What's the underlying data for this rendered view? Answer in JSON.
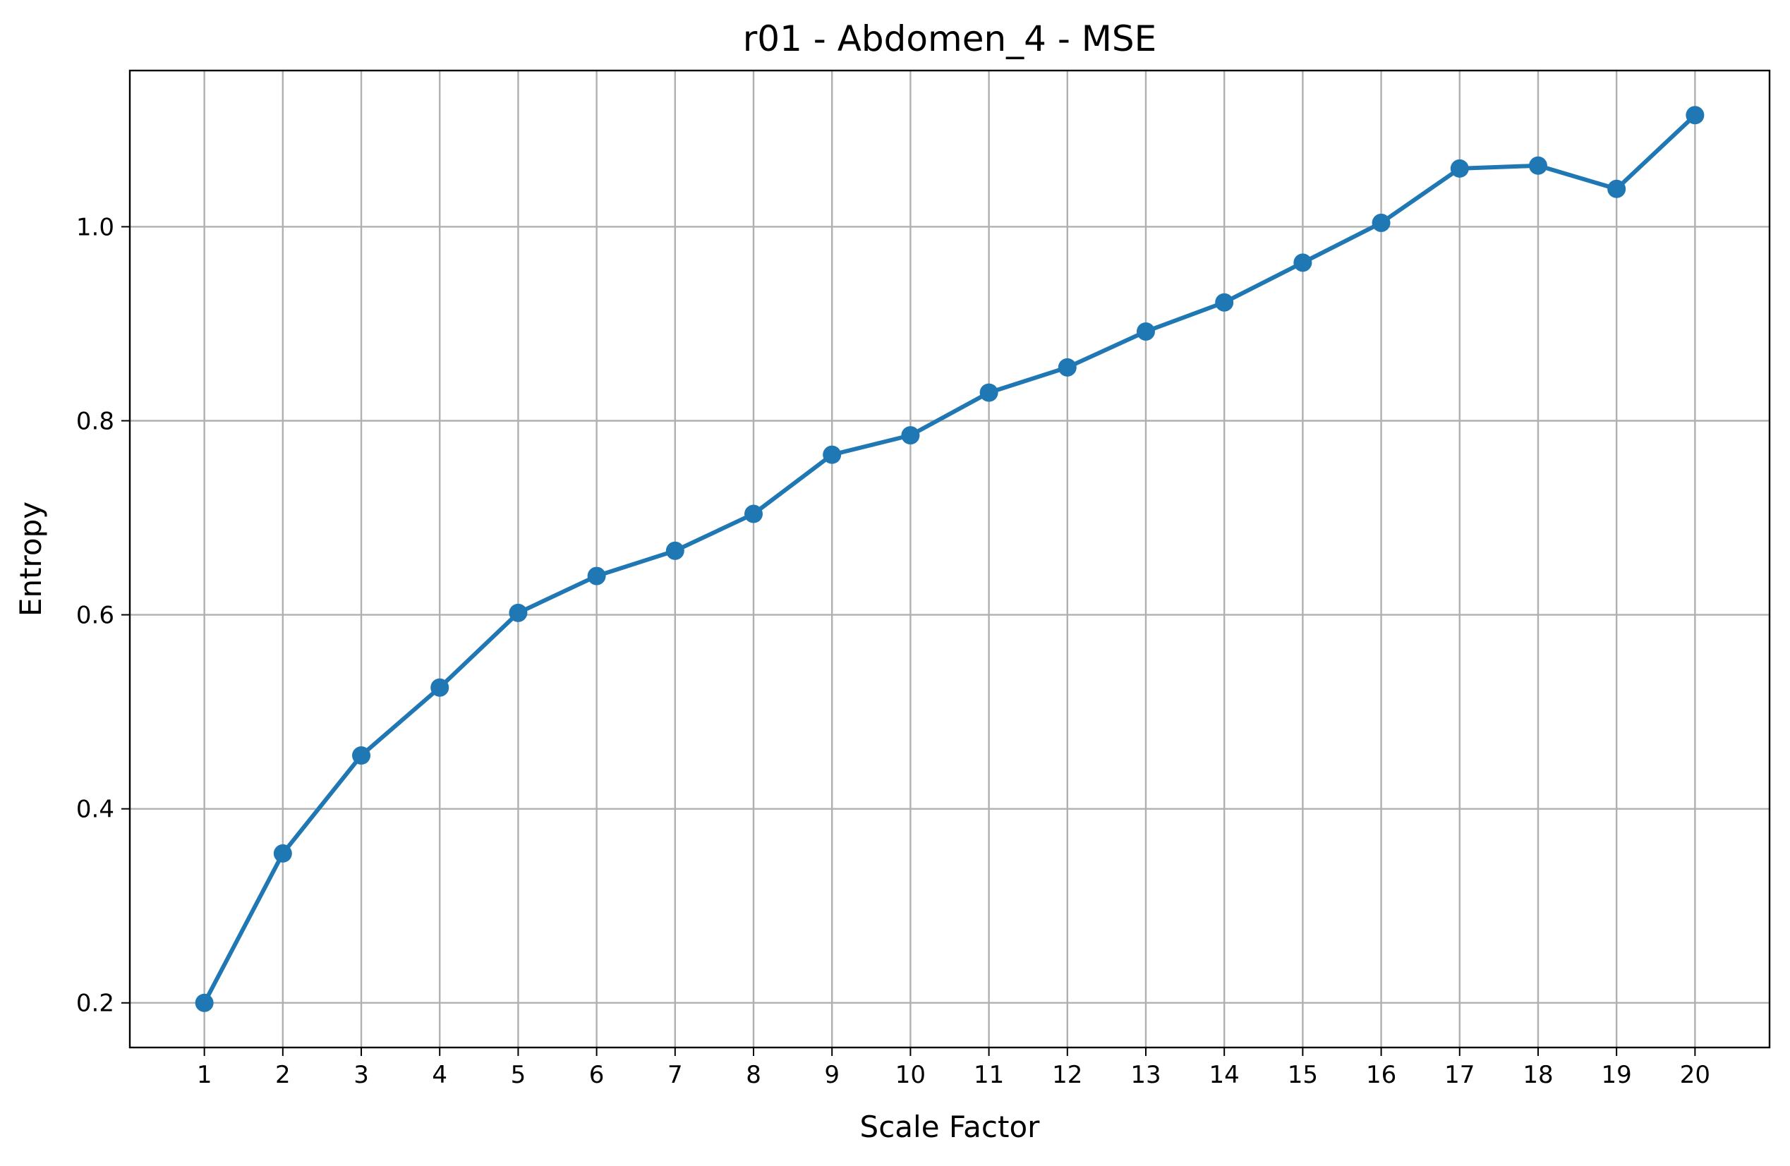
{
  "chart_data": {
    "type": "line",
    "title": "r01 - Abdomen_4 - MSE",
    "xlabel": "Scale Factor",
    "ylabel": "Entropy",
    "x": [
      1,
      2,
      3,
      4,
      5,
      6,
      7,
      8,
      9,
      10,
      11,
      12,
      13,
      14,
      15,
      16,
      17,
      18,
      19,
      20
    ],
    "series": [
      {
        "values": [
          0.2,
          0.354,
          0.455,
          0.525,
          0.602,
          0.64,
          0.666,
          0.704,
          0.765,
          0.785,
          0.829,
          0.855,
          0.892,
          0.922,
          0.963,
          1.004,
          1.06,
          1.063,
          1.039,
          1.115
        ],
        "color": "#1f77b4",
        "marker": "circle"
      }
    ],
    "xticks": [
      "1",
      "2",
      "3",
      "4",
      "5",
      "6",
      "7",
      "8",
      "9",
      "10",
      "11",
      "12",
      "13",
      "14",
      "15",
      "16",
      "17",
      "18",
      "19",
      "20"
    ],
    "yticks": [
      "0.2",
      "0.4",
      "0.6",
      "0.8",
      "1.0"
    ],
    "ytick_values": [
      0.2,
      0.4,
      0.6,
      0.8,
      1.0
    ],
    "xlim": [
      0.05,
      20.95
    ],
    "ylim": [
      0.154,
      1.161
    ],
    "grid": true
  }
}
